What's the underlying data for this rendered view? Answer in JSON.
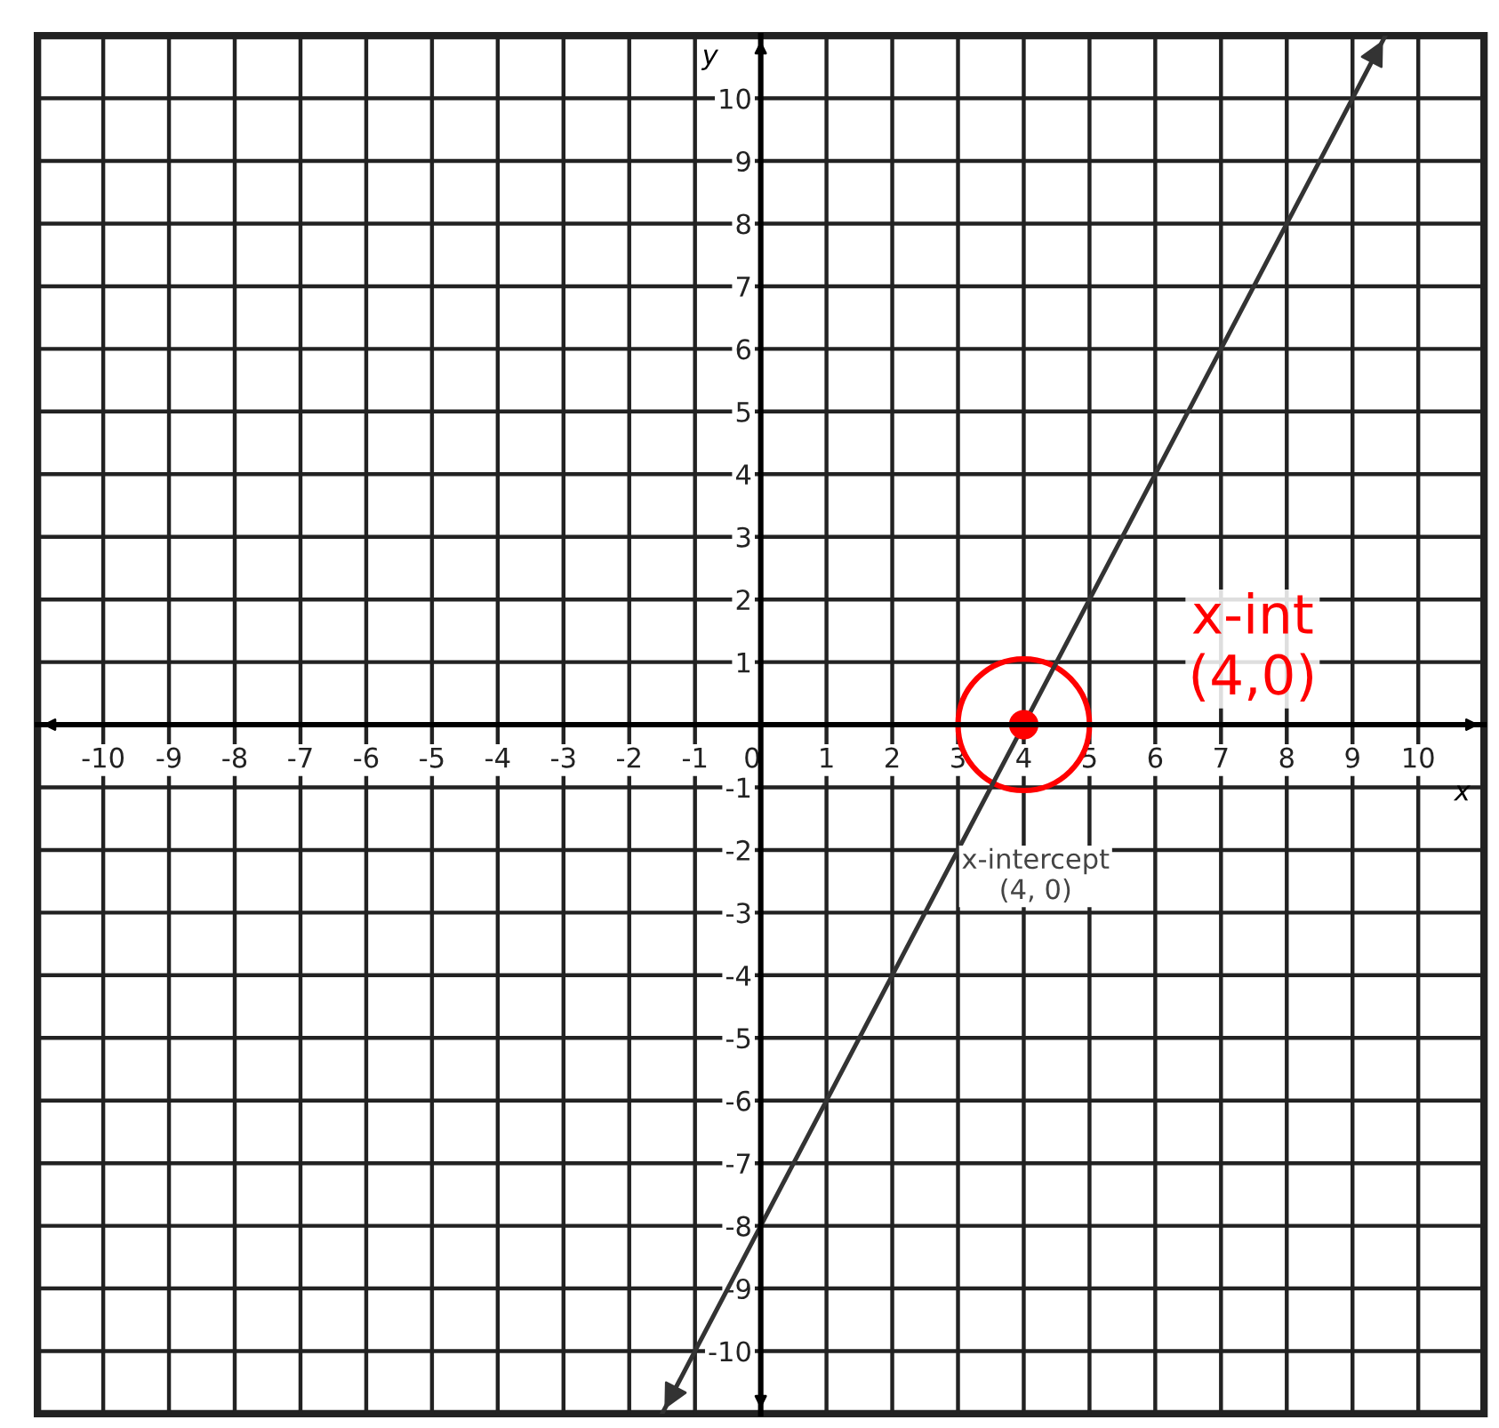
{
  "chart_data": {
    "type": "line",
    "xlabel": "x",
    "ylabel": "y",
    "xlim": [
      -11,
      11
    ],
    "ylim": [
      -11,
      11
    ],
    "xticks": [
      -10,
      -9,
      -8,
      -7,
      -6,
      -5,
      -4,
      -3,
      -2,
      -1,
      0,
      1,
      2,
      3,
      4,
      5,
      6,
      7,
      8,
      9,
      10
    ],
    "yticks": [
      -10,
      -9,
      -8,
      -7,
      -6,
      -5,
      -4,
      -3,
      -2,
      -1,
      1,
      2,
      3,
      4,
      5,
      6,
      7,
      8,
      9,
      10
    ],
    "grid": true,
    "series": [
      {
        "x": [
          -1.5,
          9.5
        ],
        "values": [
          -11,
          11
        ],
        "color": "#333333"
      },
      {
        "type": "scatter",
        "x": [
          4
        ],
        "values": [
          0
        ],
        "color": "#ff0000",
        "marker": "circle"
      }
    ],
    "annotations": [
      "x-intercept\n(4, 0)",
      "x-int\n(4,0)"
    ]
  }
}
